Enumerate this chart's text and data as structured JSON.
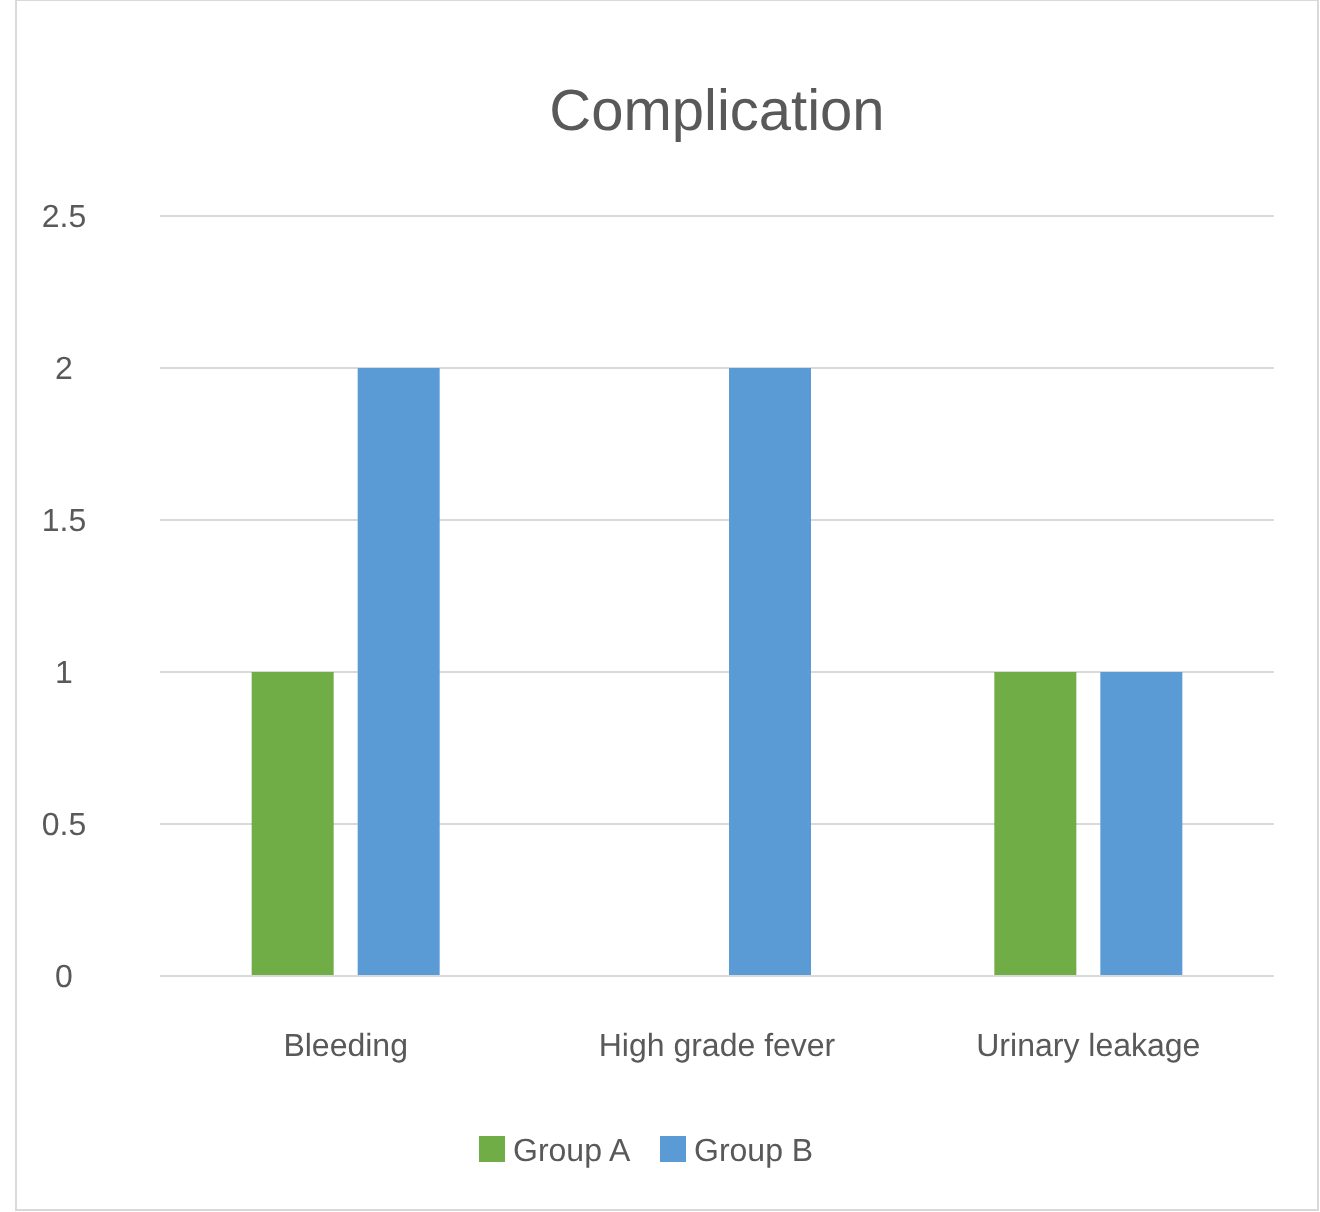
{
  "chart_data": {
    "type": "bar",
    "title": "Complication",
    "categories": [
      "Bleeding",
      "High grade fever",
      "Urinary leakage"
    ],
    "series": [
      {
        "name": "Group A",
        "color": "#70ad47",
        "values": [
          1,
          0,
          1
        ]
      },
      {
        "name": "Group B",
        "color": "#5b9bd5",
        "values": [
          2,
          2,
          1
        ]
      }
    ],
    "ylim": [
      0,
      2.5
    ],
    "yticks": [
      0,
      0.5,
      1,
      1.5,
      2,
      2.5
    ],
    "grid": "y",
    "legend": "bottom"
  }
}
